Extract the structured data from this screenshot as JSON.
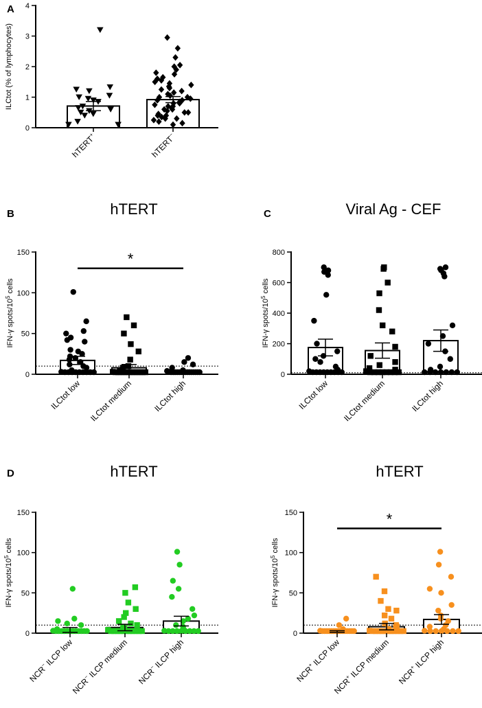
{
  "chart_data": [
    {
      "id": "A",
      "panel_label": "A",
      "type": "bar",
      "title": "",
      "ylabel": "ILCtot (% of lymphocytes)",
      "xlabel": "",
      "ylim": [
        0,
        4
      ],
      "yticks": [
        0,
        1,
        2,
        3,
        4
      ],
      "color": "#000000",
      "threshold": null,
      "significance": null,
      "bars": [
        {
          "category": "hTERT",
          "category_sup": "+",
          "marker": "triangle-down",
          "mean": 0.71,
          "sem": 0.15,
          "points": [
            3.2,
            1.33,
            1.25,
            1.2,
            1.05,
            1.0,
            0.95,
            0.9,
            0.85,
            0.7,
            0.65,
            0.6,
            0.55,
            0.5,
            0.45,
            0.4,
            0.2,
            0.1,
            0.1
          ]
        },
        {
          "category": "hTERT",
          "category_sup": "−",
          "marker": "diamond",
          "mean": 0.92,
          "sem": 0.1,
          "points": [
            2.95,
            2.6,
            2.3,
            2.05,
            2.0,
            1.9,
            1.8,
            1.75,
            1.65,
            1.6,
            1.55,
            1.5,
            1.45,
            1.4,
            1.35,
            1.3,
            1.25,
            1.2,
            1.15,
            1.1,
            1.05,
            1.0,
            1.0,
            0.95,
            0.9,
            0.9,
            0.85,
            0.8,
            0.8,
            0.75,
            0.7,
            0.7,
            0.65,
            0.6,
            0.6,
            0.55,
            0.5,
            0.5,
            0.45,
            0.4,
            0.4,
            0.35,
            0.3,
            0.3,
            0.25,
            0.2,
            0.15,
            0.1
          ]
        }
      ]
    },
    {
      "id": "B",
      "panel_label": "B",
      "type": "bar",
      "title": "hTERT",
      "ylabel": "IFN-γ spots/10^5 cells",
      "xlabel": "",
      "ylim": [
        0,
        150
      ],
      "yticks": [
        0,
        50,
        100,
        150
      ],
      "color": "#000000",
      "threshold": 10,
      "significance": {
        "from": 0,
        "to": 2,
        "value": 130,
        "label": "*"
      },
      "bars": [
        {
          "category": "ILCtot low",
          "category_sup": "",
          "marker": "circle",
          "mean": 17,
          "sem": 5,
          "points": [
            101,
            65,
            53,
            50,
            45,
            42,
            40,
            30,
            28,
            25,
            22,
            20,
            18,
            15,
            12,
            10,
            8,
            5,
            3,
            2,
            1,
            0,
            0,
            0,
            0,
            0,
            0,
            0
          ]
        },
        {
          "category": "ILCtot medium",
          "category_sup": "",
          "marker": "square",
          "mean": 8,
          "sem": 4,
          "points": [
            70,
            60,
            50,
            37,
            28,
            18,
            10,
            8,
            5,
            3,
            2,
            1,
            0,
            0,
            0,
            0,
            0,
            0,
            0,
            0,
            0,
            0
          ]
        },
        {
          "category": "ILCtot high",
          "category_sup": "",
          "marker": "circle",
          "mean": 2,
          "sem": 1,
          "points": [
            20,
            15,
            12,
            8,
            5,
            4,
            3,
            2,
            2,
            1,
            1,
            0,
            0,
            0,
            0,
            0,
            0,
            0,
            0,
            0,
            0,
            0
          ]
        }
      ]
    },
    {
      "id": "C",
      "panel_label": "C",
      "type": "bar",
      "title": "Viral Ag - CEF",
      "ylabel": "IFN-γ spots/10^5 cells",
      "xlabel": "",
      "ylim": [
        0,
        800
      ],
      "yticks": [
        0,
        200,
        400,
        600,
        800
      ],
      "color": "#000000",
      "threshold": 10,
      "significance": null,
      "bars": [
        {
          "category": "ILCtot low",
          "category_sup": "",
          "marker": "circle",
          "mean": 175,
          "sem": 55,
          "points": [
            700,
            680,
            670,
            650,
            520,
            350,
            200,
            150,
            120,
            100,
            80,
            50,
            30,
            20,
            10,
            5,
            3,
            2,
            1,
            0,
            0,
            0,
            0
          ]
        },
        {
          "category": "ILCtot medium",
          "category_sup": "",
          "marker": "square",
          "mean": 155,
          "sem": 50,
          "points": [
            700,
            690,
            600,
            530,
            420,
            320,
            280,
            180,
            120,
            80,
            60,
            40,
            30,
            20,
            10,
            5,
            2,
            0,
            0,
            0,
            0,
            0
          ]
        },
        {
          "category": "ILCtot high",
          "category_sup": "",
          "marker": "circle",
          "mean": 220,
          "sem": 70,
          "points": [
            700,
            690,
            680,
            660,
            640,
            320,
            250,
            200,
            150,
            100,
            50,
            30,
            10,
            5,
            2,
            0,
            0,
            0,
            0
          ]
        }
      ]
    },
    {
      "id": "D1",
      "panel_label": "D",
      "type": "bar",
      "title": "hTERT",
      "ylabel": "IFN-γ spots/10^5 cells",
      "xlabel": "",
      "ylim": [
        0,
        150
      ],
      "yticks": [
        0,
        50,
        100,
        150
      ],
      "color": "#22cc22",
      "threshold": 10,
      "significance": null,
      "bars": [
        {
          "category": "NCR ILCP low",
          "category_sup": "−",
          "marker": "circle",
          "mean": 4,
          "sem": 3,
          "points": [
            55,
            18,
            15,
            12,
            10,
            5,
            3,
            2,
            1,
            0,
            0,
            0,
            0,
            0,
            0,
            0,
            0,
            0,
            0
          ]
        },
        {
          "category": "NCR ILCP medium",
          "category_sup": "−",
          "marker": "square",
          "mean": 7,
          "sem": 4,
          "points": [
            57,
            50,
            38,
            30,
            25,
            20,
            15,
            12,
            10,
            8,
            6,
            4,
            2,
            1,
            0,
            0,
            0,
            0,
            0,
            0,
            0,
            0,
            0
          ]
        },
        {
          "category": "NCR ILCP high",
          "category_sup": "−",
          "marker": "circle",
          "mean": 15,
          "sem": 6,
          "points": [
            101,
            85,
            65,
            55,
            45,
            30,
            22,
            18,
            15,
            10,
            8,
            5,
            3,
            2,
            0,
            0,
            0,
            0,
            0,
            0,
            0
          ]
        }
      ]
    },
    {
      "id": "D2",
      "panel_label": "",
      "type": "bar",
      "title": "hTERT",
      "ylabel": "IFN-γ spots/10^5 cells",
      "xlabel": "",
      "ylim": [
        0,
        150
      ],
      "yticks": [
        0,
        50,
        100,
        150
      ],
      "color": "#f7901e",
      "threshold": 10,
      "significance": {
        "from": 0,
        "to": 2,
        "value": 130,
        "label": "*"
      },
      "bars": [
        {
          "category": "NCR ILCP low",
          "category_sup": "+",
          "marker": "circle",
          "mean": 2,
          "sem": 1,
          "points": [
            18,
            10,
            5,
            3,
            2,
            1,
            0,
            0,
            0,
            0,
            0,
            0,
            0,
            0,
            0,
            0,
            0,
            0,
            0
          ]
        },
        {
          "category": "NCR ILCP medium",
          "category_sup": "+",
          "marker": "square",
          "mean": 8,
          "sem": 4,
          "points": [
            70,
            52,
            40,
            30,
            28,
            22,
            18,
            12,
            10,
            8,
            5,
            3,
            2,
            1,
            0,
            0,
            0,
            0,
            0,
            0,
            0,
            0,
            0
          ]
        },
        {
          "category": "NCR ILCP high",
          "category_sup": "+",
          "marker": "circle",
          "mean": 17,
          "sem": 6,
          "points": [
            101,
            85,
            70,
            55,
            50,
            35,
            28,
            22,
            18,
            15,
            10,
            8,
            5,
            3,
            2,
            0,
            0,
            0,
            0,
            0
          ]
        }
      ]
    }
  ]
}
